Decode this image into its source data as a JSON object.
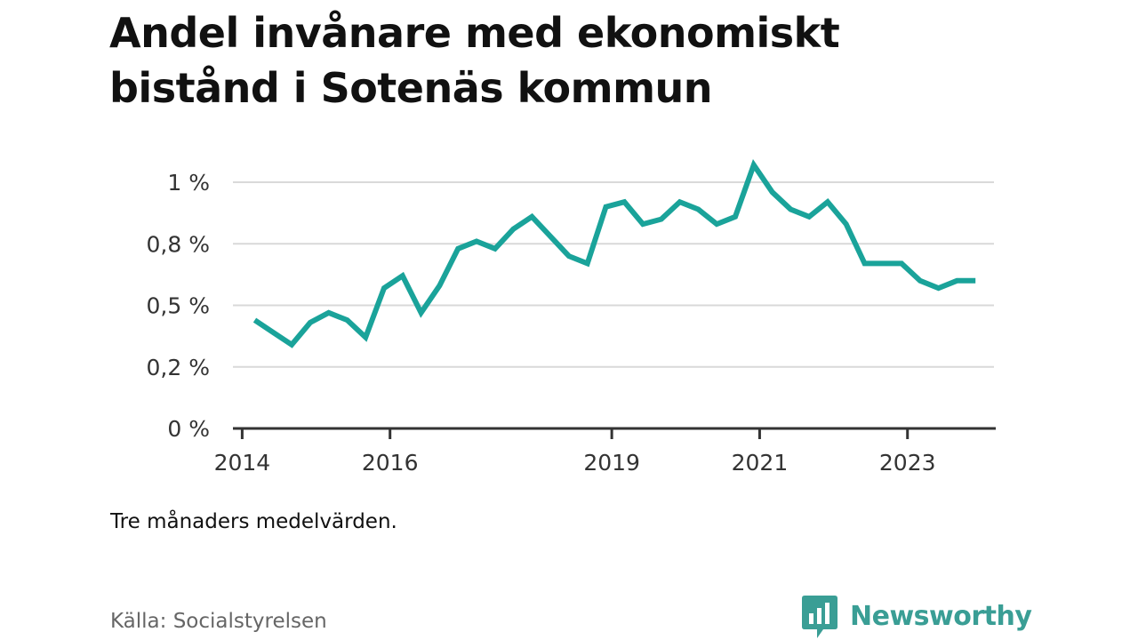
{
  "colors": {
    "line": "#1aa39a",
    "grid": "#d9d9d9",
    "axis": "#333333",
    "brand": "#3a9e95"
  },
  "footer": {
    "note": "Tre månaders medelvärden.",
    "source": "Källa: Socialstyrelsen",
    "brand_name": "Newsworthy",
    "brand_icon": "bar-chart-speech-bubble-icon"
  },
  "chart_data": {
    "type": "line",
    "title": "Andel invånare med ekonomiskt bistånd i Sotenäs kommun",
    "xlabel": "",
    "ylabel": "",
    "grid": true,
    "legend": "none",
    "xlim": [
      2013.875,
      2024.17
    ],
    "ylim": [
      0,
      1.0
    ],
    "x_ticks": [
      2014,
      2016,
      2019,
      2021,
      2023
    ],
    "x_tick_labels": [
      "2014",
      "2016",
      "2019",
      "2021",
      "2023"
    ],
    "y_ticks": [
      0,
      0.25,
      0.5,
      0.75,
      1.0
    ],
    "y_tick_labels": [
      "0 %",
      "0,2 %",
      "0,5 %",
      "0,8 %",
      "1 %"
    ],
    "series": [
      {
        "x": [
          2014.17,
          2014.42,
          2014.67,
          2014.92,
          2015.17,
          2015.42,
          2015.67,
          2015.92,
          2016.17,
          2016.42,
          2016.67,
          2016.92,
          2017.17,
          2017.42,
          2017.67,
          2017.92,
          2018.17,
          2018.42,
          2018.67,
          2018.92,
          2019.17,
          2019.42,
          2019.67,
          2019.92,
          2020.17,
          2020.42,
          2020.67,
          2020.92,
          2021.17,
          2021.42,
          2021.67,
          2021.92,
          2022.17,
          2022.42,
          2022.67,
          2022.92,
          2023.17,
          2023.42,
          2023.67,
          2023.92
        ],
        "values": [
          0.44,
          0.39,
          0.34,
          0.43,
          0.47,
          0.44,
          0.37,
          0.57,
          0.62,
          0.47,
          0.58,
          0.73,
          0.76,
          0.73,
          0.81,
          0.86,
          0.78,
          0.7,
          0.67,
          0.9,
          0.92,
          0.83,
          0.85,
          0.92,
          0.89,
          0.83,
          0.86,
          1.07,
          0.96,
          0.89,
          0.86,
          0.92,
          0.83,
          0.67,
          0.67,
          0.67,
          0.6,
          0.57,
          0.6,
          0.6
        ]
      }
    ]
  }
}
